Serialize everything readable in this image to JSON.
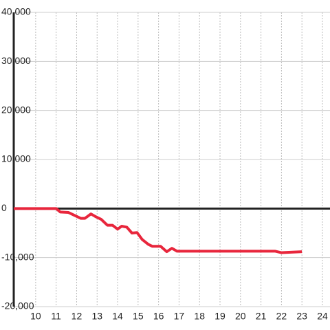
{
  "chart_data": {
    "type": "line",
    "x": [
      8.93,
      11.0,
      11.2,
      11.6,
      11.9,
      12.2,
      12.4,
      12.7,
      12.95,
      13.2,
      13.5,
      13.75,
      14.0,
      14.2,
      14.45,
      14.7,
      14.95,
      15.2,
      15.5,
      15.7,
      16.1,
      16.4,
      16.65,
      16.9,
      21.7,
      22.0,
      23.0
    ],
    "series": [
      {
        "color": "#e8263c",
        "values": [
          0,
          0,
          -700,
          -800,
          -1400,
          -2000,
          -2000,
          -1100,
          -1700,
          -2200,
          -3400,
          -3400,
          -4200,
          -3600,
          -3800,
          -5000,
          -4900,
          -6300,
          -7300,
          -7700,
          -7700,
          -8800,
          -8100,
          -8700,
          -8700,
          -9000,
          -8800
        ]
      }
    ],
    "xlim": [
      8.93,
      24.37
    ],
    "xticks": [
      10,
      11,
      12,
      13,
      14,
      15,
      16,
      17,
      18,
      19,
      20,
      21,
      22,
      23,
      24
    ],
    "ylim": [
      -20000,
      40000
    ],
    "yticks": [
      {
        "value": -20000,
        "label": "-20,000"
      },
      {
        "value": -10000,
        "label": "-10,000"
      },
      0,
      {
        "value": 10000,
        "label": "10,000"
      },
      {
        "value": 20000,
        "label": "20,000"
      },
      {
        "value": 30000,
        "label": "30,000"
      },
      {
        "value": 40000,
        "label": "40,000"
      }
    ],
    "grid": true
  }
}
